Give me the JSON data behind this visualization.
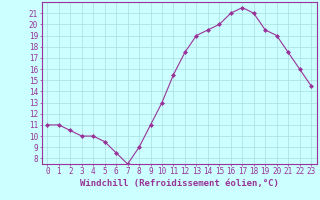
{
  "x": [
    0,
    1,
    2,
    3,
    4,
    5,
    6,
    7,
    8,
    9,
    10,
    11,
    12,
    13,
    14,
    15,
    16,
    17,
    18,
    19,
    20,
    21,
    22,
    23
  ],
  "y": [
    11.0,
    11.0,
    10.5,
    10.0,
    10.0,
    9.5,
    8.5,
    7.5,
    9.0,
    11.0,
    13.0,
    15.5,
    17.5,
    19.0,
    19.5,
    20.0,
    21.0,
    21.5,
    21.0,
    19.5,
    19.0,
    17.5,
    16.0,
    14.5
  ],
  "line_color": "#993399",
  "marker": "D",
  "marker_size": 2,
  "background_color": "#ccffff",
  "grid_color": "#aadddd",
  "xlabel": "Windchill (Refroidissement éolien,°C)",
  "xlim": [
    -0.5,
    23.5
  ],
  "ylim": [
    7.5,
    22.0
  ],
  "yticks": [
    8,
    9,
    10,
    11,
    12,
    13,
    14,
    15,
    16,
    17,
    18,
    19,
    20,
    21
  ],
  "xticks": [
    0,
    1,
    2,
    3,
    4,
    5,
    6,
    7,
    8,
    9,
    10,
    11,
    12,
    13,
    14,
    15,
    16,
    17,
    18,
    19,
    20,
    21,
    22,
    23
  ],
  "tick_fontsize": 5.5,
  "xlabel_fontsize": 6.5,
  "label_color": "#993399",
  "axis_color": "#993399"
}
